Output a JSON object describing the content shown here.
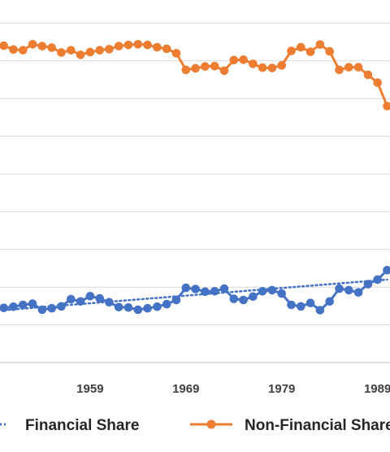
{
  "chart_data": {
    "type": "line",
    "x": [
      1950,
      1951,
      1952,
      1953,
      1954,
      1955,
      1956,
      1957,
      1958,
      1959,
      1960,
      1961,
      1962,
      1963,
      1964,
      1965,
      1966,
      1967,
      1968,
      1969,
      1970,
      1971,
      1972,
      1973,
      1974,
      1975,
      1976,
      1977,
      1978,
      1979,
      1980,
      1981,
      1982,
      1983,
      1984,
      1985,
      1986,
      1987,
      1988,
      1989,
      1990
    ],
    "x_ticks": [
      {
        "value": 1959,
        "label": "1959"
      },
      {
        "value": 1969,
        "label": "1969"
      },
      {
        "value": 1979,
        "label": "1979"
      },
      {
        "value": 1989,
        "label": "1989"
      }
    ],
    "xlim": [
      1949.6,
      1990.3
    ],
    "ylim": [
      0,
      100
    ],
    "y_gridlines": [
      0,
      10,
      20,
      30,
      40,
      50,
      60,
      70,
      80,
      90,
      100
    ],
    "grid": "horizontal",
    "legend_position": "bottom",
    "series": [
      {
        "name": "Financial Share",
        "color": "#4472C4",
        "values": [
          14.5,
          14.8,
          15.3,
          15.6,
          14.0,
          14.4,
          14.9,
          16.8,
          16.2,
          17.6,
          17.0,
          16.0,
          14.7,
          14.6,
          14.0,
          14.4,
          14.8,
          15.5,
          16.6,
          19.8,
          19.5,
          18.8,
          18.9,
          19.6,
          16.9,
          16.6,
          17.5,
          18.9,
          19.2,
          18.3,
          15.3,
          14.9,
          15.8,
          13.9,
          16.2,
          19.6,
          19.2,
          18.6,
          20.8,
          22.0,
          24.5
        ]
      },
      {
        "name": "Non-Financial Share",
        "color": "#ED7D31",
        "values": [
          84.0,
          83.0,
          82.8,
          84.4,
          83.9,
          83.5,
          82.2,
          82.8,
          81.6,
          82.3,
          82.8,
          83.1,
          83.9,
          84.2,
          84.4,
          84.2,
          83.6,
          83.2,
          82.0,
          77.6,
          78.0,
          78.5,
          78.6,
          77.4,
          80.2,
          80.3,
          79.2,
          78.2,
          78.1,
          78.8,
          82.6,
          83.6,
          82.4,
          84.3,
          82.5,
          77.6,
          78.3,
          78.3,
          76.3,
          74.2,
          68.0
        ]
      }
    ],
    "trendline": {
      "series": "Financial Share",
      "style": "dotted",
      "color": "#4472C4",
      "start": [
        1950,
        13.9
      ],
      "end": [
        1990,
        22.0
      ]
    }
  }
}
